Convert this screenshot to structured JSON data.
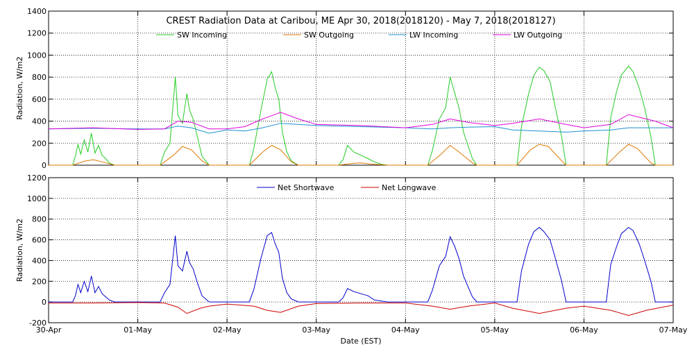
{
  "chart_data": [
    {
      "type": "line",
      "title": "CREST Radiation Data at Caribou, ME   Apr 30, 2018(2018120) - May  7, 2018(2018127)",
      "ylabel": "Radiation, W/m2",
      "xlabel": "",
      "ylim": [
        0,
        1400
      ],
      "yticks": [
        0,
        200,
        400,
        600,
        800,
        1000,
        1200,
        1400
      ],
      "xlim": [
        0,
        7
      ],
      "x_tick_labels": [
        "30-Apr",
        "01-May",
        "02-May",
        "03-May",
        "04-May",
        "05-May",
        "06-May",
        "07-May"
      ],
      "grid": true,
      "legend_position": "top",
      "series": [
        {
          "name": "SW Incoming",
          "color": "#22cc22",
          "x": [
            0.0,
            0.27,
            0.3,
            0.33,
            0.36,
            0.4,
            0.44,
            0.48,
            0.52,
            0.56,
            0.6,
            0.64,
            0.68,
            0.74,
            1.0,
            1.25,
            1.3,
            1.36,
            1.42,
            1.45,
            1.5,
            1.55,
            1.58,
            1.62,
            1.67,
            1.72,
            1.8,
            2.0,
            2.25,
            2.3,
            2.38,
            2.45,
            2.5,
            2.54,
            2.58,
            2.62,
            2.67,
            2.72,
            2.8,
            3.0,
            3.25,
            3.3,
            3.35,
            3.42,
            3.5,
            3.58,
            3.65,
            3.72,
            3.8,
            4.0,
            4.25,
            4.3,
            4.38,
            4.45,
            4.5,
            4.55,
            4.6,
            4.65,
            4.7,
            4.75,
            4.8,
            5.0,
            5.25,
            5.3,
            5.38,
            5.44,
            5.5,
            5.55,
            5.62,
            5.68,
            5.75,
            5.8,
            6.0,
            6.25,
            6.3,
            6.36,
            6.42,
            6.5,
            6.55,
            6.62,
            6.68,
            6.75,
            6.8,
            7.0
          ],
          "y": [
            0,
            0,
            80,
            190,
            100,
            230,
            120,
            290,
            110,
            180,
            90,
            60,
            20,
            0,
            0,
            0,
            120,
            200,
            800,
            450,
            380,
            650,
            500,
            420,
            250,
            80,
            0,
            0,
            0,
            150,
            500,
            780,
            850,
            700,
            600,
            300,
            120,
            40,
            0,
            0,
            0,
            50,
            180,
            120,
            90,
            60,
            30,
            10,
            0,
            0,
            0,
            130,
            420,
            520,
            800,
            660,
            520,
            300,
            180,
            60,
            0,
            0,
            0,
            350,
            650,
            820,
            890,
            860,
            760,
            520,
            260,
            0,
            0,
            0,
            430,
            650,
            820,
            900,
            850,
            700,
            520,
            260,
            0,
            0
          ]
        },
        {
          "name": "SW Outgoing",
          "color": "#dd7700",
          "x": [
            0.0,
            0.27,
            0.4,
            0.5,
            0.6,
            0.74,
            1.0,
            1.25,
            1.4,
            1.5,
            1.6,
            1.72,
            1.8,
            2.0,
            2.25,
            2.4,
            2.5,
            2.6,
            2.72,
            2.8,
            3.0,
            3.25,
            3.4,
            3.5,
            3.6,
            3.8,
            4.0,
            4.25,
            4.4,
            4.5,
            4.6,
            4.75,
            4.8,
            5.0,
            5.25,
            5.4,
            5.5,
            5.6,
            5.75,
            5.8,
            6.0,
            6.25,
            6.4,
            6.5,
            6.6,
            6.75,
            6.8,
            7.0
          ],
          "y": [
            0,
            0,
            35,
            50,
            30,
            0,
            0,
            0,
            90,
            170,
            140,
            40,
            0,
            0,
            0,
            120,
            180,
            140,
            30,
            0,
            0,
            0,
            15,
            20,
            10,
            0,
            0,
            0,
            100,
            180,
            120,
            20,
            0,
            0,
            0,
            140,
            190,
            170,
            40,
            0,
            0,
            0,
            120,
            190,
            150,
            20,
            0,
            0
          ]
        },
        {
          "name": "LW Incoming",
          "color": "#1e90d0",
          "x": [
            0.0,
            0.5,
            1.0,
            1.3,
            1.45,
            1.6,
            1.8,
            2.0,
            2.2,
            2.4,
            2.6,
            2.8,
            3.0,
            3.5,
            4.0,
            4.3,
            4.5,
            4.7,
            5.0,
            5.2,
            5.5,
            5.8,
            6.0,
            6.3,
            6.5,
            6.8,
            7.0
          ],
          "y": [
            330,
            335,
            330,
            330,
            355,
            340,
            290,
            320,
            310,
            340,
            380,
            370,
            360,
            350,
            340,
            330,
            340,
            345,
            350,
            320,
            310,
            300,
            310,
            320,
            340,
            340,
            340
          ]
        },
        {
          "name": "LW Outgoing",
          "color": "#dd00dd",
          "x": [
            0.0,
            0.5,
            1.0,
            1.3,
            1.45,
            1.6,
            1.8,
            2.0,
            2.2,
            2.4,
            2.6,
            2.8,
            3.0,
            3.5,
            4.0,
            4.3,
            4.5,
            4.7,
            5.0,
            5.2,
            5.5,
            5.8,
            6.0,
            6.3,
            6.5,
            6.8,
            7.0
          ],
          "y": [
            330,
            340,
            325,
            330,
            400,
            390,
            330,
            330,
            350,
            420,
            480,
            420,
            370,
            360,
            340,
            370,
            420,
            390,
            360,
            380,
            420,
            370,
            340,
            370,
            460,
            400,
            340
          ]
        }
      ]
    },
    {
      "type": "line",
      "title": "",
      "ylabel": "Radiation, W/m2",
      "xlabel": "Date (EST)",
      "ylim": [
        -200,
        1200
      ],
      "yticks": [
        -200,
        0,
        200,
        400,
        600,
        800,
        1000,
        1200
      ],
      "xlim": [
        0,
        7
      ],
      "x_tick_labels": [
        "30-Apr",
        "01-May",
        "02-May",
        "03-May",
        "04-May",
        "05-May",
        "06-May",
        "07-May"
      ],
      "grid": true,
      "legend_position": "top",
      "series": [
        {
          "name": "Net Shortwave",
          "color": "#0000cc",
          "x": [
            0.0,
            0.27,
            0.3,
            0.33,
            0.36,
            0.4,
            0.44,
            0.48,
            0.52,
            0.56,
            0.6,
            0.64,
            0.68,
            0.74,
            1.0,
            1.25,
            1.3,
            1.36,
            1.42,
            1.45,
            1.5,
            1.55,
            1.58,
            1.62,
            1.67,
            1.72,
            1.8,
            2.0,
            2.25,
            2.3,
            2.38,
            2.45,
            2.5,
            2.54,
            2.58,
            2.62,
            2.67,
            2.72,
            2.8,
            3.0,
            3.25,
            3.3,
            3.35,
            3.42,
            3.5,
            3.58,
            3.65,
            3.72,
            3.8,
            4.0,
            4.25,
            4.3,
            4.38,
            4.45,
            4.5,
            4.55,
            4.6,
            4.65,
            4.7,
            4.75,
            4.8,
            5.0,
            5.25,
            5.3,
            5.38,
            5.44,
            5.5,
            5.55,
            5.62,
            5.68,
            5.75,
            5.8,
            6.0,
            6.25,
            6.3,
            6.36,
            6.42,
            6.5,
            6.55,
            6.62,
            6.68,
            6.75,
            6.8,
            7.0
          ],
          "y": [
            0,
            0,
            60,
            170,
            90,
            200,
            100,
            250,
            90,
            150,
            80,
            50,
            20,
            0,
            0,
            0,
            90,
            170,
            640,
            350,
            300,
            490,
            380,
            320,
            180,
            60,
            0,
            0,
            0,
            120,
            420,
            640,
            670,
            560,
            480,
            230,
            90,
            30,
            0,
            0,
            0,
            40,
            130,
            100,
            80,
            60,
            20,
            10,
            0,
            0,
            0,
            110,
            350,
            440,
            630,
            540,
            420,
            250,
            150,
            50,
            0,
            0,
            0,
            300,
            560,
            680,
            720,
            680,
            600,
            420,
            200,
            0,
            0,
            0,
            360,
            520,
            660,
            720,
            690,
            560,
            400,
            200,
            0,
            0
          ]
        },
        {
          "name": "Net Longwave",
          "color": "#cc0000",
          "x": [
            0.0,
            0.5,
            1.0,
            1.3,
            1.45,
            1.55,
            1.7,
            1.8,
            2.0,
            2.3,
            2.45,
            2.6,
            2.8,
            3.0,
            3.5,
            4.0,
            4.3,
            4.5,
            4.7,
            5.0,
            5.2,
            5.5,
            5.8,
            6.0,
            6.3,
            6.5,
            6.7,
            7.0
          ],
          "y": [
            -10,
            -10,
            -5,
            -10,
            -50,
            -110,
            -60,
            -40,
            -20,
            -40,
            -80,
            -100,
            -40,
            -15,
            -10,
            -10,
            -40,
            -70,
            -40,
            -10,
            -60,
            -110,
            -60,
            -40,
            -80,
            -130,
            -80,
            -30
          ]
        }
      ]
    }
  ]
}
